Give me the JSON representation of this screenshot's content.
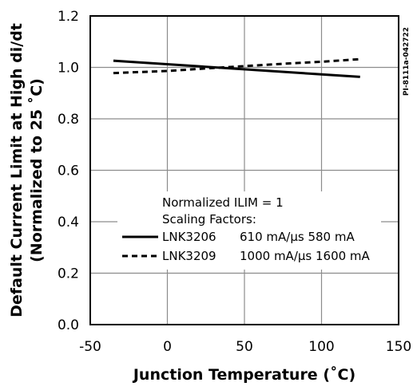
{
  "chart_data": {
    "type": "line",
    "xlabel": "Junction Temperature (˚C)",
    "ylabel_line1": "Default Current Limit at High di/dt",
    "ylabel_line2": "(Normalized to 25 ˚C)",
    "xlim": [
      -50,
      150
    ],
    "ylim": [
      0.0,
      1.2
    ],
    "x_ticks": [
      "-50",
      "0",
      "50",
      "100",
      "150"
    ],
    "y_ticks": [
      "0.0",
      "0.2",
      "0.4",
      "0.6",
      "0.8",
      "1.0",
      "1.2"
    ],
    "grid": true,
    "document_code": "PI-8111a-042722",
    "legend": {
      "heading1": "Normalized ILIM = 1",
      "heading2": "Scaling Factors:",
      "entries": [
        {
          "name": "LNK3206",
          "factors": "610 mA/µs 580 mA",
          "style": "solid"
        },
        {
          "name": "LNK3209",
          "factors": "1000 mA/µs 1600 mA",
          "style": "dashed"
        }
      ]
    },
    "series": [
      {
        "name": "LNK3206",
        "style": "solid",
        "x": [
          -35,
          125
        ],
        "y": [
          1.026,
          0.963
        ]
      },
      {
        "name": "LNK3209",
        "style": "dashed",
        "x": [
          -35,
          0,
          25,
          50,
          75,
          100,
          125
        ],
        "y": [
          0.978,
          0.986,
          0.996,
          1.005,
          1.014,
          1.022,
          1.032
        ]
      }
    ]
  }
}
